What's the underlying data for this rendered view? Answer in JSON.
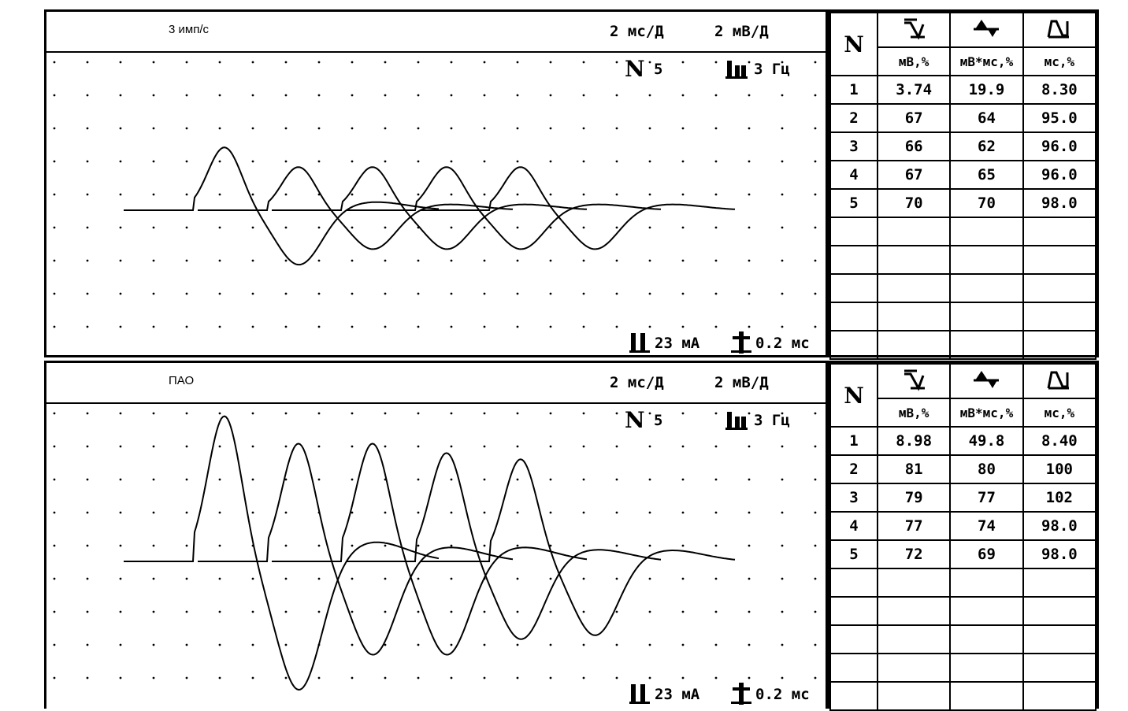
{
  "panels": [
    {
      "title": "3 имп/с",
      "sweep": "2 мс/Д",
      "gain": "2  мВ/Д",
      "n_label": "N",
      "n_value": "5",
      "freq": "3 Гц",
      "current": "23 мА",
      "duration": "0.2 мс",
      "table": {
        "header_n": "N",
        "icons": [
          "amplitude-icon",
          "area-icon",
          "duration-icon"
        ],
        "units": [
          "мВ,%",
          "мВ*мс,%",
          "мс,%"
        ],
        "rows": [
          [
            "1",
            "3.74",
            "19.9",
            "8.30"
          ],
          [
            "2",
            "67",
            "64",
            "95.0"
          ],
          [
            "3",
            "66",
            "62",
            "96.0"
          ],
          [
            "4",
            "67",
            "65",
            "96.0"
          ],
          [
            "5",
            "70",
            "70",
            "98.0"
          ]
        ]
      },
      "chart_data": {
        "type": "line",
        "series_count": 5,
        "peaks": [
          80,
          55,
          55,
          55,
          55
        ],
        "troughs": [
          -70,
          -50,
          -50,
          -50,
          -50
        ]
      }
    },
    {
      "title": "ПАО",
      "sweep": "2 мс/Д",
      "gain": "2  мВ/Д",
      "n_label": "N",
      "n_value": "5",
      "freq": "3 Гц",
      "current": "23 мА",
      "duration": "0.2 мс",
      "table": {
        "header_n": "N",
        "icons": [
          "amplitude-icon",
          "area-icon",
          "duration-icon"
        ],
        "units": [
          "мВ,%",
          "мВ*мс,%",
          "мс,%"
        ],
        "rows": [
          [
            "1",
            "8.98",
            "49.8",
            "8.40"
          ],
          [
            "2",
            "81",
            "80",
            "100"
          ],
          [
            "3",
            "79",
            "77",
            "102"
          ],
          [
            "4",
            "77",
            "74",
            "98.0"
          ],
          [
            "5",
            "72",
            "69",
            "98.0"
          ]
        ]
      },
      "chart_data": {
        "type": "line",
        "series_count": 5,
        "peaks": [
          185,
          150,
          150,
          138,
          130
        ],
        "troughs": [
          -165,
          -120,
          -120,
          -100,
          -95
        ]
      }
    }
  ]
}
